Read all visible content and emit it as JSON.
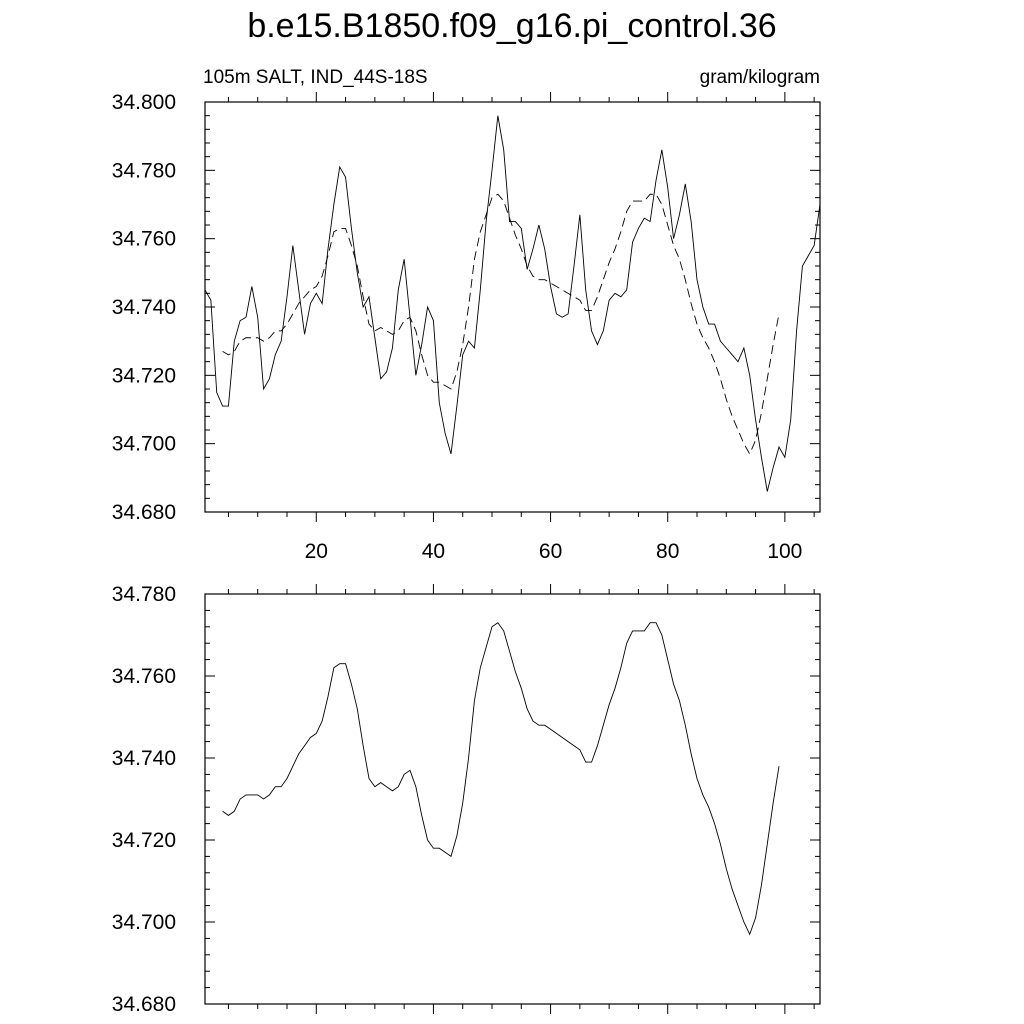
{
  "title": "b.e15.B1850.f09_g16.pi_control.36",
  "subtitle_left": "105m SALT, IND_44S-18S",
  "subtitle_right": "gram/kilogram",
  "chart_data": [
    {
      "type": "line",
      "title": "",
      "xlabel": "",
      "ylabel": "",
      "xlim": [
        1,
        106
      ],
      "ylim": [
        34.68,
        34.8
      ],
      "x_ticks": [
        20,
        40,
        60,
        80,
        100
      ],
      "x_tick_labels": [
        "20",
        "40",
        "60",
        "80",
        "100"
      ],
      "y_ticks": [
        34.68,
        34.7,
        34.72,
        34.74,
        34.76,
        34.78,
        34.8
      ],
      "y_tick_labels": [
        "34.680",
        "34.700",
        "34.720",
        "34.740",
        "34.760",
        "34.780",
        "34.800"
      ],
      "series": [
        {
          "style": "solid",
          "x_start": 1,
          "values": [
            34.745,
            34.742,
            34.715,
            34.711,
            34.711,
            34.73,
            34.736,
            34.737,
            34.746,
            34.737,
            34.716,
            34.719,
            34.726,
            34.73,
            34.743,
            34.758,
            34.745,
            34.732,
            34.741,
            34.744,
            34.741,
            34.757,
            34.77,
            34.781,
            34.778,
            34.763,
            34.75,
            34.74,
            34.743,
            34.731,
            34.719,
            34.721,
            34.728,
            34.745,
            34.754,
            34.737,
            34.72,
            34.729,
            34.74,
            34.736,
            34.712,
            34.703,
            34.697,
            34.711,
            34.726,
            34.73,
            34.728,
            34.745,
            34.765,
            34.78,
            34.796,
            34.786,
            34.765,
            34.765,
            34.763,
            34.751,
            34.757,
            34.764,
            34.757,
            34.746,
            34.738,
            34.737,
            34.738,
            34.752,
            34.767,
            34.745,
            34.733,
            34.729,
            34.733,
            34.742,
            34.744,
            34.743,
            34.745,
            34.759,
            34.763,
            34.766,
            34.765,
            34.777,
            34.786,
            34.775,
            34.76,
            34.767,
            34.776,
            34.765,
            34.748,
            34.74,
            34.735,
            34.735,
            34.73,
            34.728,
            34.726,
            34.724,
            34.728,
            34.72,
            34.707,
            34.696,
            34.686,
            34.693,
            34.699,
            34.696,
            34.707,
            34.733,
            34.752,
            34.755,
            34.758,
            34.77
          ]
        },
        {
          "style": "dashed",
          "x_start": 4,
          "values": [
            34.727,
            34.726,
            34.727,
            34.73,
            34.731,
            34.731,
            34.731,
            34.73,
            34.731,
            34.733,
            34.733,
            34.735,
            34.738,
            34.741,
            34.743,
            34.745,
            34.746,
            34.749,
            34.755,
            34.762,
            34.763,
            34.763,
            34.758,
            34.752,
            34.743,
            34.735,
            34.733,
            34.734,
            34.733,
            34.732,
            34.733,
            34.736,
            34.737,
            34.733,
            34.726,
            34.72,
            34.718,
            34.718,
            34.717,
            34.716,
            34.721,
            34.729,
            34.74,
            34.754,
            34.762,
            34.767,
            34.772,
            34.773,
            34.771,
            34.766,
            34.761,
            34.757,
            34.752,
            34.749,
            34.748,
            34.748,
            34.747,
            34.746,
            34.745,
            34.744,
            34.743,
            34.742,
            34.739,
            34.739,
            34.743,
            34.748,
            34.753,
            34.757,
            34.762,
            34.768,
            34.771,
            34.771,
            34.771,
            34.773,
            34.773,
            34.77,
            34.764,
            34.758,
            34.754,
            34.748,
            34.741,
            34.735,
            34.731,
            34.728,
            34.724,
            34.719,
            34.713,
            34.708,
            34.704,
            34.7,
            34.697,
            34.701,
            34.709,
            34.719,
            34.729,
            34.738
          ]
        }
      ]
    },
    {
      "type": "line",
      "title": "",
      "xlabel": "",
      "ylabel": "",
      "xlim": [
        1,
        106
      ],
      "ylim": [
        34.68,
        34.78
      ],
      "x_ticks": [
        20,
        40,
        60,
        80,
        100
      ],
      "x_tick_labels": [],
      "y_ticks": [
        34.68,
        34.7,
        34.72,
        34.74,
        34.76,
        34.78
      ],
      "y_tick_labels": [
        "34.680",
        "34.700",
        "34.720",
        "34.740",
        "34.760",
        "34.780"
      ],
      "series": [
        {
          "style": "solid",
          "x_start": 4,
          "values": [
            34.727,
            34.726,
            34.727,
            34.73,
            34.731,
            34.731,
            34.731,
            34.73,
            34.731,
            34.733,
            34.733,
            34.735,
            34.738,
            34.741,
            34.743,
            34.745,
            34.746,
            34.749,
            34.755,
            34.762,
            34.763,
            34.763,
            34.758,
            34.752,
            34.743,
            34.735,
            34.733,
            34.734,
            34.733,
            34.732,
            34.733,
            34.736,
            34.737,
            34.733,
            34.726,
            34.72,
            34.718,
            34.718,
            34.717,
            34.716,
            34.721,
            34.729,
            34.74,
            34.754,
            34.762,
            34.767,
            34.772,
            34.773,
            34.771,
            34.766,
            34.761,
            34.757,
            34.752,
            34.749,
            34.748,
            34.748,
            34.747,
            34.746,
            34.745,
            34.744,
            34.743,
            34.742,
            34.739,
            34.739,
            34.743,
            34.748,
            34.753,
            34.757,
            34.762,
            34.768,
            34.771,
            34.771,
            34.771,
            34.773,
            34.773,
            34.77,
            34.764,
            34.758,
            34.754,
            34.748,
            34.741,
            34.735,
            34.731,
            34.728,
            34.724,
            34.719,
            34.713,
            34.708,
            34.704,
            34.7,
            34.697,
            34.701,
            34.709,
            34.719,
            34.729,
            34.738
          ]
        }
      ]
    }
  ]
}
